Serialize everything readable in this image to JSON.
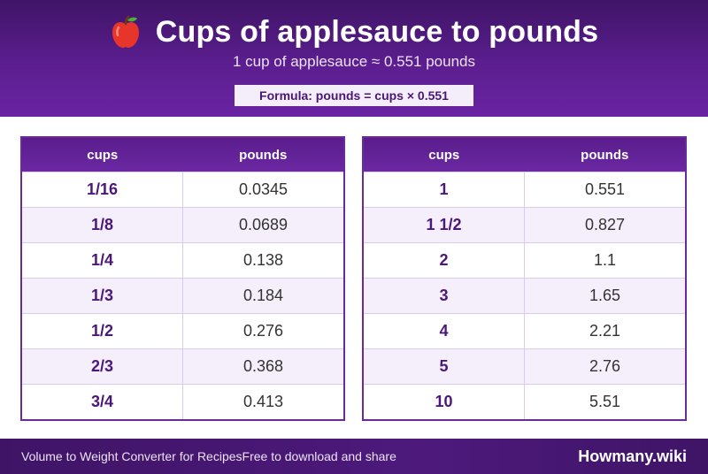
{
  "header": {
    "icon": "apple-icon",
    "title": "Cups of applesauce to pounds",
    "subtitle": "1 cup of applesauce ≈ 0.551 pounds",
    "formula": "Formula: pounds = cups × 0.551"
  },
  "tables": {
    "left": {
      "headers": [
        "cups",
        "pounds"
      ],
      "rows": [
        {
          "cups": "1/16",
          "pounds": "0.0345"
        },
        {
          "cups": "1/8",
          "pounds": "0.0689"
        },
        {
          "cups": "1/4",
          "pounds": "0.138"
        },
        {
          "cups": "1/3",
          "pounds": "0.184"
        },
        {
          "cups": "1/2",
          "pounds": "0.276"
        },
        {
          "cups": "2/3",
          "pounds": "0.368"
        },
        {
          "cups": "3/4",
          "pounds": "0.413"
        }
      ]
    },
    "right": {
      "headers": [
        "cups",
        "pounds"
      ],
      "rows": [
        {
          "cups": "1",
          "pounds": "0.551"
        },
        {
          "cups": "1 1/2",
          "pounds": "0.827"
        },
        {
          "cups": "2",
          "pounds": "1.1"
        },
        {
          "cups": "3",
          "pounds": "1.65"
        },
        {
          "cups": "4",
          "pounds": "2.21"
        },
        {
          "cups": "5",
          "pounds": "2.76"
        },
        {
          "cups": "10",
          "pounds": "5.51"
        }
      ]
    }
  },
  "footer": {
    "left_text": "Volume to Weight Converter for RecipesFree to download and share",
    "brand": "Howmany.wiki"
  },
  "colors": {
    "header_purple": "#5b1e8f",
    "accent_text": "#4b1778",
    "alt_row": "#f4effa"
  }
}
